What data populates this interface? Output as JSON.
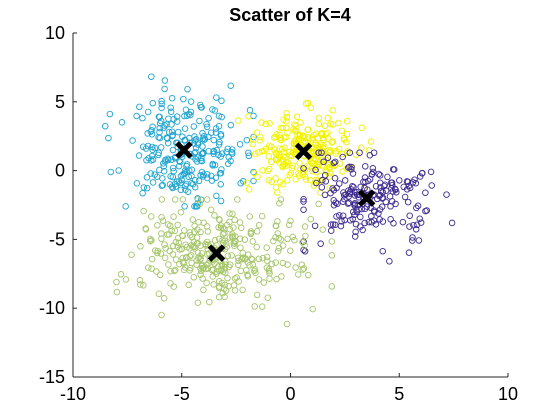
{
  "chart_data": {
    "type": "scatter",
    "title": "Scatter of K=4",
    "xlabel": "",
    "ylabel": "",
    "xlim": [
      -10,
      10
    ],
    "ylim": [
      -15,
      10
    ],
    "xticks": [
      -10,
      -5,
      0,
      5,
      10
    ],
    "yticks": [
      -15,
      -10,
      -5,
      0,
      5,
      10
    ],
    "grid": false,
    "legend": "none",
    "marker": "open-circle",
    "clusters": [
      {
        "color": "#1fa4cf",
        "centroid": [
          -4.9,
          1.5
        ],
        "n_points": 260,
        "x_range": [
          -8.9,
          -1.7
        ],
        "y_range": [
          -2.6,
          7.4
        ]
      },
      {
        "color": "#f2f200",
        "centroid": [
          0.6,
          1.4
        ],
        "n_points": 260,
        "x_range": [
          -2.4,
          3.7
        ],
        "y_range": [
          -1.6,
          5.3
        ]
      },
      {
        "color": "#3d2a8f",
        "centroid": [
          3.5,
          -2.0
        ],
        "n_points": 200,
        "x_range": [
          0.6,
          8.8
        ],
        "y_range": [
          -7.0,
          1.3
        ]
      },
      {
        "color": "#a6c66a",
        "centroid": [
          -3.4,
          -6.0
        ],
        "n_points": 330,
        "x_range": [
          -8.0,
          1.9
        ],
        "y_range": [
          -11.3,
          -2.1
        ]
      }
    ],
    "centroid_marker": "x",
    "centroid_color": "#000000"
  }
}
